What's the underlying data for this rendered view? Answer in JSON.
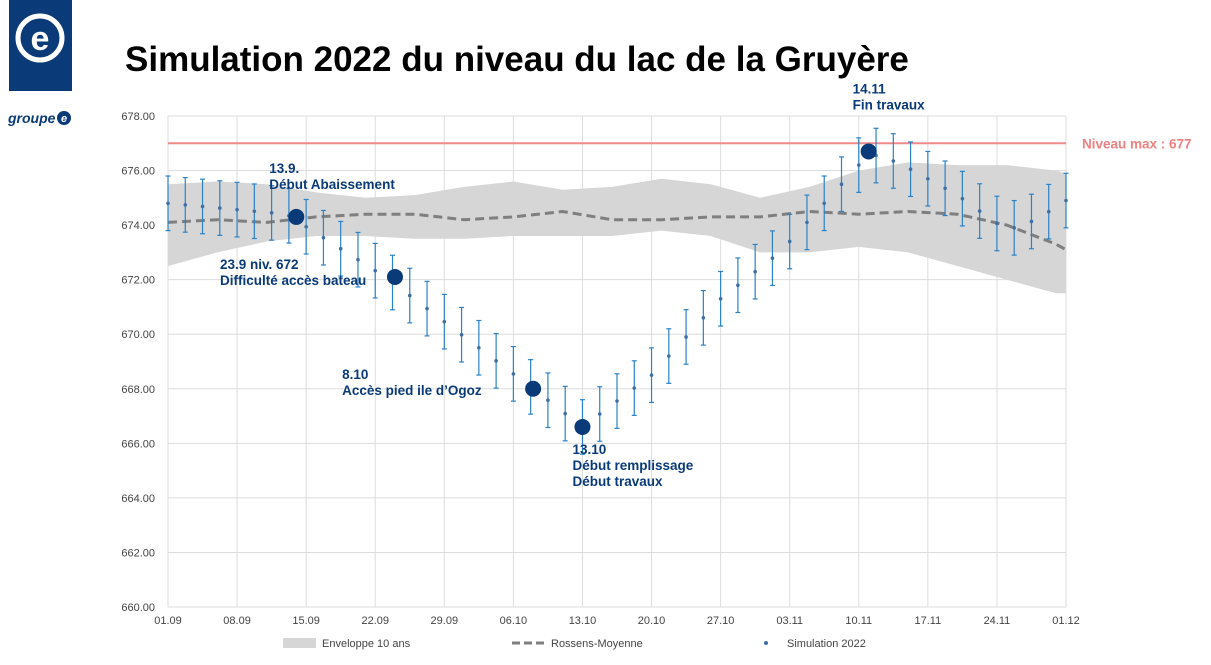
{
  "header": {
    "title": "Simulation 2022 du niveau du lac de la Gruyère",
    "logo_sub": "groupe"
  },
  "chart_data": {
    "type": "line",
    "title": "Simulation 2022 du niveau du lac de la Gruyère",
    "xlabel": "",
    "ylabel": "",
    "x_ticks": [
      "01.09",
      "08.09",
      "15.09",
      "22.09",
      "29.09",
      "06.10",
      "13.10",
      "20.10",
      "27.10",
      "03.11",
      "10.11",
      "17.11",
      "24.11",
      "01.12"
    ],
    "ylim": [
      660,
      678
    ],
    "y_ticks": [
      "660.00",
      "662.00",
      "664.00",
      "666.00",
      "668.00",
      "670.00",
      "672.00",
      "674.00",
      "676.00",
      "678.00"
    ],
    "grid": true,
    "legend_position": "bottom",
    "legend": [
      "Enveloppe 10 ans",
      "Rossens-Moyenne",
      "Simulation  2022"
    ],
    "reference_line": {
      "value": 677,
      "label": "Niveau max : 677",
      "color": "#f08a8a"
    },
    "envelope": {
      "name": "Enveloppe 10 ans",
      "days": [
        0,
        5,
        10,
        15,
        20,
        25,
        30,
        35,
        40,
        45,
        50,
        55,
        60,
        65,
        70,
        75,
        80,
        85,
        90,
        91
      ],
      "upper": [
        675.5,
        675.6,
        675.5,
        675.2,
        675.0,
        675.1,
        675.4,
        675.6,
        675.3,
        675.4,
        675.7,
        675.5,
        675.0,
        675.4,
        676.0,
        676.3,
        676.2,
        676.2,
        676.0,
        675.9
      ],
      "lower": [
        672.5,
        673.0,
        673.4,
        673.6,
        673.6,
        673.5,
        673.5,
        673.6,
        673.6,
        673.6,
        673.8,
        673.6,
        673.0,
        673.0,
        673.2,
        673.0,
        672.5,
        672.0,
        671.5,
        671.5
      ]
    },
    "series": [
      {
        "name": "Rossens-Moyenne",
        "days": [
          0,
          5,
          10,
          15,
          20,
          25,
          30,
          35,
          40,
          45,
          50,
          55,
          60,
          65,
          70,
          75,
          80,
          85,
          90,
          91
        ],
        "values": [
          674.1,
          674.2,
          674.1,
          674.3,
          674.4,
          674.4,
          674.2,
          674.3,
          674.5,
          674.2,
          674.2,
          674.3,
          674.3,
          674.5,
          674.4,
          674.5,
          674.4,
          674.0,
          673.3,
          673.1
        ]
      },
      {
        "name": "Simulation  2022",
        "days": [
          0,
          12,
          22,
          37,
          42,
          49,
          56,
          62,
          70,
          72,
          75,
          80,
          85,
          88,
          91
        ],
        "values": [
          674.8,
          674.4,
          672.1,
          668.0,
          666.6,
          668.5,
          671.3,
          673.0,
          676.2,
          676.6,
          676.1,
          675.1,
          673.8,
          674.2,
          674.9
        ],
        "error": 1
      }
    ],
    "annotations": [
      {
        "day": 13,
        "value": 674.3,
        "lines": [
          "13.9.",
          "Début Abaissement"
        ]
      },
      {
        "day": 23,
        "value": 672.1,
        "lines": [
          "23.9 niv. 672",
          "Difficulté accès bateau"
        ]
      },
      {
        "day": 37,
        "value": 668.0,
        "lines": [
          "8.10",
          "Accès pied ile d’Ogoz"
        ]
      },
      {
        "day": 42,
        "value": 666.6,
        "lines": [
          "13.10",
          "Début remplissage",
          "Début travaux"
        ]
      },
      {
        "day": 71,
        "value": 676.7,
        "lines": [
          "14.11",
          "Fin travaux"
        ]
      }
    ]
  }
}
